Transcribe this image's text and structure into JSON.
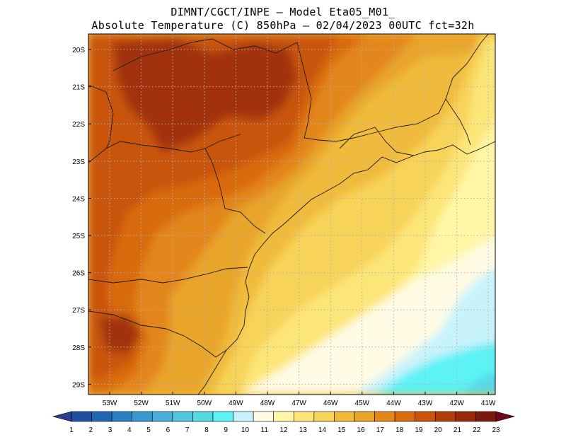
{
  "title": {
    "line1": "DIMNT/CGCT/INPE –  Model Eta05_M01_",
    "line2": "Absolute Temperature (C) 850hPa –  02/04/2023 00UTC fct=32h"
  },
  "axes": {
    "lat_labels": [
      "20S",
      "21S",
      "22S",
      "23S",
      "24S",
      "25S",
      "26S",
      "27S",
      "28S",
      "29S"
    ],
    "lon_labels": [
      "53W",
      "52W",
      "51W",
      "50W",
      "49W",
      "48W",
      "47W",
      "46W",
      "45W",
      "44W",
      "43W",
      "42W",
      "41W"
    ]
  },
  "colorbar": {
    "labels": [
      "1",
      "2",
      "3",
      "4",
      "5",
      "6",
      "7",
      "8",
      "9",
      "10",
      "11",
      "12",
      "13",
      "14",
      "15",
      "16",
      "17",
      "18",
      "19",
      "20",
      "21",
      "22",
      "23"
    ],
    "colors": [
      "#2c3e8c",
      "#1f4f9e",
      "#1f66b0",
      "#2a80c0",
      "#3a97cf",
      "#4aaed8",
      "#52c4dc",
      "#55d8e6",
      "#5cf2f6",
      "#c9f3fb",
      "#fffbe4",
      "#fff6a6",
      "#fde679",
      "#f8d35a",
      "#f0bb3c",
      "#e9a42b",
      "#e3861c",
      "#d96b11",
      "#c9540d",
      "#b23e0b",
      "#98290a",
      "#7a1a0c",
      "#6a0a1a"
    ]
  },
  "map_fields": {
    "dark_red": "#a2310b",
    "red_orange": "#c9540d",
    "orange": "#d96b11",
    "orange_light": "#e3861c",
    "amber": "#e9a42b",
    "gold": "#f0bb3c",
    "yellow": "#f8d35a",
    "yellow_light": "#fde679",
    "pale_yellow": "#fff6a6",
    "cream": "#fffbe4",
    "pale_cyan": "#c9f3fb",
    "cyan": "#5cf2f6",
    "teal": "#55d8e6",
    "grid_color": "#b0b0b0",
    "border_color": "#1a1a1a"
  }
}
